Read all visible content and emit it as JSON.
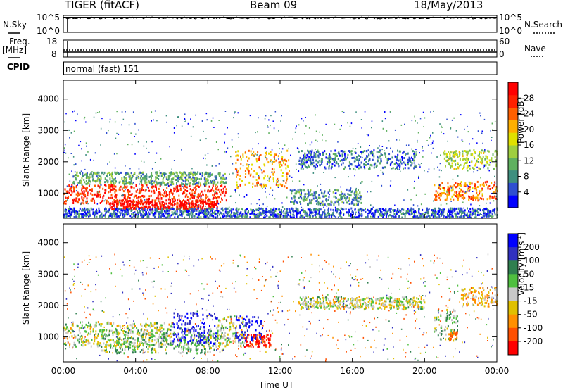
{
  "header": {
    "radar": "TIGER (fitACF)",
    "beam": "Beam 09",
    "date": "18/May/2013"
  },
  "top_panels": {
    "nsky_label": "N.Sky",
    "nsky_ticks": [
      "10^5",
      "10^0"
    ],
    "nsearch_label": "N.Search",
    "nsearch_ticks": [
      "10^5",
      "10^0"
    ],
    "freq_label": "Freq.",
    "freq_unit": "[MHz]",
    "freq_ticks": [
      "18",
      "8"
    ],
    "nave_label": "Nave",
    "nave_ticks": [
      "60",
      "0"
    ],
    "cpid_label": "CPID",
    "cpid_value": "normal (fast) 151"
  },
  "axes": {
    "ylabel": "Slant Range [km]",
    "xlabel": "Time UT",
    "x_ticks": [
      "00:00",
      "04:00",
      "08:00",
      "12:00",
      "16:00",
      "20:00",
      "00:00"
    ],
    "y_ticks": [
      "4000",
      "3000",
      "2000",
      "1000"
    ]
  },
  "colorbars": {
    "power": {
      "label": "Power [dB]",
      "ticks": [
        "28",
        "24",
        "20",
        "16",
        "12",
        "8",
        "4"
      ],
      "colors": [
        "#0000ff",
        "#2f4fd0",
        "#3f8f7f",
        "#5fb05f",
        "#9fcf3f",
        "#e0e000",
        "#ffb000",
        "#ff6000",
        "#ff2000",
        "#ff0000"
      ]
    },
    "velocity": {
      "label": "Velocity [m s",
      "label_sup": "-1",
      "label_end": "]",
      "ticks": [
        "200",
        "100",
        "50",
        "15",
        "-15",
        "-50",
        "-100",
        "-200"
      ],
      "colors": [
        "#0000ff",
        "#3030c0",
        "#2f7f4f",
        "#4fbf3f",
        "#c8c8c8",
        "#e0c000",
        "#ff9000",
        "#ff5000",
        "#ff0000"
      ]
    }
  },
  "chart_data": [
    {
      "type": "heatmap",
      "title": "Power",
      "xlabel": "Time UT",
      "ylabel": "Slant Range [km]",
      "xlim": [
        "00:00",
        "24:00"
      ],
      "ylim": [
        200,
        4600
      ],
      "colorbar_range_db": [
        0,
        30
      ],
      "features": [
        {
          "time_start": 0.0,
          "time_end": 9.0,
          "range_center": 1000,
          "range_width": 300,
          "power_db": 26
        },
        {
          "time_start": 0.5,
          "time_end": 9.0,
          "range_center": 1500,
          "range_width": 200,
          "power_db": 10
        },
        {
          "time_start": 2.5,
          "time_end": 8.5,
          "range_center": 650,
          "range_width": 150,
          "power_db": 28
        },
        {
          "time_start": 9.5,
          "time_end": 12.5,
          "range_center": 1800,
          "range_width": 600,
          "power_db": 20
        },
        {
          "time_start": 13.0,
          "time_end": 19.5,
          "range_center": 2100,
          "range_width": 300,
          "power_db": 6
        },
        {
          "time_start": 12.5,
          "time_end": 16.5,
          "range_center": 900,
          "range_width": 250,
          "power_db": 8
        },
        {
          "time_start": 20.5,
          "time_end": 24.0,
          "range_center": 1100,
          "range_width": 300,
          "power_db": 22
        },
        {
          "time_start": 21.0,
          "time_end": 24.0,
          "range_center": 2100,
          "range_width": 300,
          "power_db": 14
        },
        {
          "time_start": 0.0,
          "time_end": 24.0,
          "range_center": 400,
          "range_width": 150,
          "power_db": 5
        }
      ]
    },
    {
      "type": "heatmap",
      "title": "Velocity",
      "xlabel": "Time UT",
      "ylabel": "Slant Range [km]",
      "xlim": [
        "00:00",
        "24:00"
      ],
      "ylim": [
        200,
        4600
      ],
      "colorbar_range_ms": [
        -250,
        250
      ],
      "features": [
        {
          "time_start": 0.0,
          "time_end": 6.0,
          "range_center": 1100,
          "range_width": 400,
          "velocity_ms": 0
        },
        {
          "time_start": 2.0,
          "time_end": 9.0,
          "range_center": 900,
          "range_width": 400,
          "velocity_ms": 30
        },
        {
          "time_start": 6.0,
          "time_end": 8.5,
          "range_center": 1300,
          "range_width": 500,
          "velocity_ms": 200
        },
        {
          "time_start": 8.5,
          "time_end": 10.0,
          "range_center": 1200,
          "range_width": 500,
          "velocity_ms": 0
        },
        {
          "time_start": 9.5,
          "time_end": 11.0,
          "range_center": 1300,
          "range_width": 400,
          "velocity_ms": 220
        },
        {
          "time_start": 10.0,
          "time_end": 11.5,
          "range_center": 900,
          "range_width": 200,
          "velocity_ms": -220
        },
        {
          "time_start": 13.0,
          "time_end": 20.0,
          "range_center": 2100,
          "range_width": 200,
          "velocity_ms": 0
        },
        {
          "time_start": 20.5,
          "time_end": 21.8,
          "range_center": 1400,
          "range_width": 500,
          "velocity_ms": 30
        },
        {
          "time_start": 21.3,
          "time_end": 21.8,
          "range_center": 1050,
          "range_width": 150,
          "velocity_ms": -100
        },
        {
          "time_start": 22.0,
          "time_end": 24.0,
          "range_center": 2300,
          "range_width": 300,
          "velocity_ms": -50
        }
      ]
    }
  ]
}
